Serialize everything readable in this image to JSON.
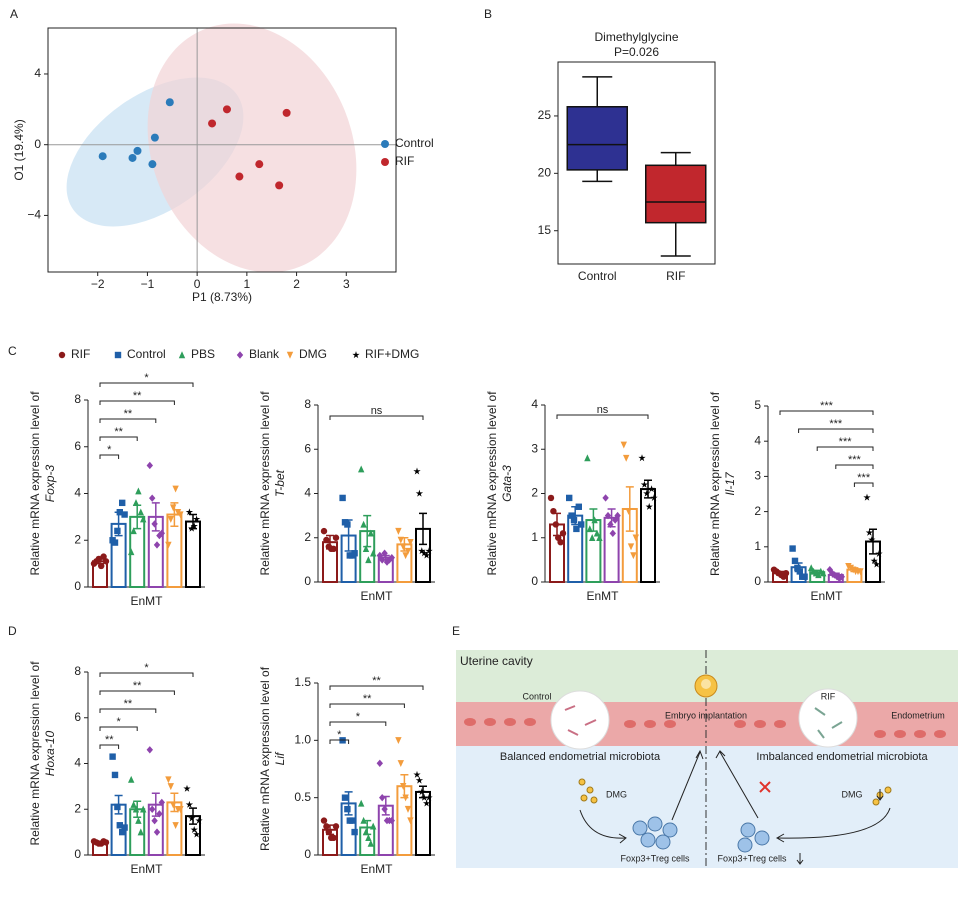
{
  "panels": [
    "A",
    "B",
    "C",
    "D",
    "E"
  ],
  "groups": {
    "names": [
      "RIF",
      "Control",
      "PBS",
      "Blank",
      "DMG",
      "RIF+DMG"
    ],
    "colors": [
      "#8b1a1a",
      "#1f5fa8",
      "#2e9e5b",
      "#8e44ad",
      "#f39c3c",
      "#000000"
    ],
    "markers": [
      "circle",
      "square",
      "triangle",
      "diamond",
      "triangle-down",
      "star"
    ]
  },
  "chart_data": [
    {
      "type": "scatter",
      "xlabel": "P1 (8.73%)",
      "ylabel": "O1 (19.4%)",
      "xlim": [
        -3,
        4
      ],
      "ylim": [
        -7.2,
        6.6
      ],
      "xticks": [
        {
          "value": -2,
          "label": "−2"
        },
        {
          "value": -1,
          "label": "−1"
        },
        0,
        1,
        2,
        3
      ],
      "yticks": [
        {
          "value": -4,
          "label": "−4"
        },
        0,
        4
      ],
      "series": [
        {
          "name": "Control",
          "color": "#2b7bba",
          "x": [
            -0.55,
            -0.85,
            -1.2,
            -1.3,
            -0.9,
            -1.9
          ],
          "y": [
            2.4,
            0.4,
            -0.35,
            -0.75,
            -1.1,
            -0.65
          ]
        },
        {
          "name": "RIF",
          "color": "#c0272d",
          "x": [
            0.6,
            0.3,
            1.8,
            1.25,
            0.85,
            1.65
          ],
          "y": [
            2.0,
            1.2,
            1.8,
            -1.1,
            -1.8,
            -2.3
          ]
        }
      ]
    },
    {
      "type": "box",
      "title": "Dimethylglycine",
      "subtitle": "P=0.026",
      "categories": [
        "Control",
        "RIF"
      ],
      "colors": [
        "#2e3192",
        "#c1272d"
      ],
      "min": [
        19.3,
        12.8
      ],
      "q1": [
        20.3,
        15.7
      ],
      "median": [
        22.5,
        17.5
      ],
      "q3": [
        25.8,
        20.7
      ],
      "max": [
        28.4,
        21.8
      ],
      "ylim": [
        12.1,
        29.7
      ],
      "yticks": [
        15,
        20,
        25
      ]
    },
    {
      "type": "bar",
      "xlabel": "EnMT",
      "ylabel": "Relative mRNA expression level of",
      "gene": "Foxp-3",
      "ylim": [
        0,
        8
      ],
      "yticks": [
        0,
        2,
        4,
        6,
        8
      ],
      "values": [
        1.1,
        2.7,
        3.0,
        3.0,
        3.1,
        2.8
      ],
      "errors": [
        0.1,
        0.5,
        0.5,
        0.6,
        0.5,
        0.3
      ],
      "points": [
        [
          1.0,
          1.1,
          1.2,
          0.9,
          1.3,
          1.1
        ],
        [
          2.0,
          1.9,
          2.4,
          3.2,
          3.6,
          3.1
        ],
        [
          1.5,
          2.4,
          3.6,
          4.1,
          3.2,
          2.9
        ],
        [
          5.2,
          3.8,
          2.7,
          1.8,
          2.2,
          2.3
        ],
        [
          1.8,
          2.9,
          3.4,
          4.2,
          3.2,
          3.1
        ],
        [
          3.2,
          2.5,
          2.6,
          2.9
        ]
      ],
      "comparisons": [
        {
          "groups": [
            "RIF",
            "Control"
          ],
          "label": "*"
        },
        {
          "groups": [
            "RIF",
            "PBS"
          ],
          "label": "**"
        },
        {
          "groups": [
            "RIF",
            "Blank"
          ],
          "label": "**"
        },
        {
          "groups": [
            "RIF",
            "DMG"
          ],
          "label": "**"
        },
        {
          "groups": [
            "RIF",
            "RIF+DMG"
          ],
          "label": "*"
        }
      ]
    },
    {
      "type": "bar",
      "xlabel": "EnMT",
      "ylabel": "Relative mRNA expression level of",
      "gene": "T-bet",
      "ylim": [
        0,
        8
      ],
      "yticks": [
        0,
        2,
        4,
        6,
        8
      ],
      "values": [
        1.8,
        2.1,
        2.3,
        1.1,
        1.7,
        2.4
      ],
      "errors": [
        0.3,
        0.7,
        0.7,
        0.1,
        0.3,
        0.7
      ],
      "points": [
        [
          2.3,
          1.9,
          1.6,
          1.5,
          1.5,
          2.0
        ],
        [
          3.8,
          2.7,
          2.6,
          1.2,
          1.2,
          1.3
        ],
        [
          5.1,
          2.6,
          1.5,
          1.0,
          2.2,
          1.3
        ],
        [
          1.2,
          1.0,
          1.3,
          0.9,
          1.0,
          1.1
        ],
        [
          2.3,
          1.9,
          1.6,
          1.2,
          1.4,
          1.8
        ],
        [
          5.0,
          4.0,
          1.4,
          1.3,
          1.2,
          1.4
        ]
      ],
      "comparisons": [
        {
          "groups": [
            "RIF",
            "RIF+DMG"
          ],
          "label": "ns"
        }
      ]
    },
    {
      "type": "bar",
      "xlabel": "EnMT",
      "ylabel": "Relative mRNA expression level of",
      "gene": "Gata-3",
      "ylim": [
        0,
        4
      ],
      "yticks": [
        0,
        1,
        2,
        3,
        4
      ],
      "values": [
        1.3,
        1.5,
        1.4,
        1.45,
        1.65,
        2.1
      ],
      "errors": [
        0.25,
        0.2,
        0.25,
        0.2,
        0.5,
        0.2
      ],
      "points": [
        [
          1.9,
          1.6,
          1.3,
          1.0,
          0.9,
          1.1
        ],
        [
          1.9,
          1.5,
          1.4,
          1.2,
          1.7,
          1.3
        ],
        [
          2.8,
          1.2,
          1.0,
          1.4,
          1.1,
          1.0
        ],
        [
          1.9,
          1.5,
          1.3,
          1.1,
          1.4,
          1.5
        ],
        [
          3.1,
          2.8,
          1.6,
          0.8,
          0.6,
          1.0
        ],
        [
          2.8,
          2.2,
          2.0,
          1.7,
          2.1,
          1.9
        ]
      ],
      "comparisons": [
        {
          "groups": [
            "RIF",
            "RIF+DMG"
          ],
          "label": "ns"
        }
      ]
    },
    {
      "type": "bar",
      "xlabel": "EnMT",
      "ylabel": "Relative mRNA expression level of",
      "gene": "Il-17",
      "ylim": [
        0,
        5
      ],
      "yticks": [
        0,
        1,
        2,
        3,
        4,
        5
      ],
      "values": [
        0.25,
        0.42,
        0.28,
        0.2,
        0.35,
        1.15
      ],
      "errors": [
        0.05,
        0.12,
        0.05,
        0.05,
        0.05,
        0.35
      ],
      "points": [
        [
          0.35,
          0.3,
          0.25,
          0.2,
          0.15,
          0.25
        ],
        [
          0.95,
          0.6,
          0.4,
          0.3,
          0.15,
          0.15
        ],
        [
          0.4,
          0.3,
          0.25,
          0.2,
          0.3,
          0.25
        ],
        [
          0.35,
          0.25,
          0.2,
          0.15,
          0.1,
          0.15
        ],
        [
          0.45,
          0.4,
          0.35,
          0.3,
          0.3,
          0.3
        ],
        [
          2.4,
          1.4,
          1.2,
          0.6,
          0.5,
          0.8
        ]
      ],
      "comparisons": [
        {
          "groups": [
            "DMG",
            "RIF+DMG"
          ],
          "label": "***"
        },
        {
          "groups": [
            "Blank",
            "RIF+DMG"
          ],
          "label": "***"
        },
        {
          "groups": [
            "PBS",
            "RIF+DMG"
          ],
          "label": "***"
        },
        {
          "groups": [
            "Control",
            "RIF+DMG"
          ],
          "label": "***"
        },
        {
          "groups": [
            "RIF",
            "RIF+DMG"
          ],
          "label": "***"
        }
      ]
    },
    {
      "type": "bar",
      "xlabel": "EnMT",
      "ylabel": "Relative mRNA expression level of",
      "gene": "Hoxa-10",
      "ylim": [
        0,
        8
      ],
      "yticks": [
        0,
        2,
        4,
        6,
        8
      ],
      "values": [
        0.55,
        2.2,
        2.0,
        2.2,
        2.3,
        1.7
      ],
      "errors": [
        0.05,
        0.4,
        0.35,
        0.5,
        0.4,
        0.35
      ],
      "points": [
        [
          0.6,
          0.55,
          0.5,
          0.5,
          0.6,
          0.55
        ],
        [
          4.3,
          3.5,
          2.1,
          1.3,
          1.0,
          1.2
        ],
        [
          3.3,
          2.2,
          2.0,
          1.5,
          1.0,
          2.0
        ],
        [
          4.6,
          2.0,
          1.5,
          1.0,
          1.8,
          2.3
        ],
        [
          3.3,
          3.0,
          2.2,
          1.3,
          2.0,
          2.0
        ],
        [
          2.9,
          2.2,
          1.6,
          1.1,
          0.9,
          1.5
        ]
      ],
      "comparisons": [
        {
          "groups": [
            "RIF",
            "Control"
          ],
          "label": "**"
        },
        {
          "groups": [
            "RIF",
            "PBS"
          ],
          "label": "*"
        },
        {
          "groups": [
            "RIF",
            "Blank"
          ],
          "label": "**"
        },
        {
          "groups": [
            "RIF",
            "DMG"
          ],
          "label": "**"
        },
        {
          "groups": [
            "RIF",
            "RIF+DMG"
          ],
          "label": "*"
        }
      ]
    },
    {
      "type": "bar",
      "xlabel": "EnMT",
      "ylabel": "Relative mRNA expression level of",
      "gene": "Lif",
      "ylim": [
        0,
        1.5
      ],
      "yticks": [
        0,
        0.5,
        {
          "value": 1,
          "label": "1.0"
        },
        1.5
      ],
      "values": [
        0.22,
        0.45,
        0.24,
        0.43,
        0.6,
        0.55
      ],
      "errors": [
        0.04,
        0.1,
        0.06,
        0.08,
        0.1,
        0.05
      ],
      "points": [
        [
          0.3,
          0.25,
          0.2,
          0.15,
          0.15,
          0.25
        ],
        [
          1.0,
          0.5,
          0.4,
          0.3,
          0.3,
          0.2
        ],
        [
          0.45,
          0.3,
          0.2,
          0.15,
          0.1,
          0.25
        ],
        [
          0.8,
          0.5,
          0.4,
          0.3,
          0.3,
          0.3
        ],
        [
          1.0,
          0.8,
          0.6,
          0.5,
          0.4,
          0.3
        ],
        [
          0.7,
          0.65,
          0.55,
          0.5,
          0.45,
          0.5
        ]
      ],
      "comparisons": [
        {
          "groups": [
            "RIF",
            "Control"
          ],
          "label": "*"
        },
        {
          "groups": [
            "RIF",
            "Blank"
          ],
          "label": "*"
        },
        {
          "groups": [
            "RIF",
            "DMG"
          ],
          "label": "**"
        },
        {
          "groups": [
            "RIF",
            "RIF+DMG"
          ],
          "label": "**"
        }
      ]
    }
  ],
  "diagram": {
    "cavity": "Uterine cavity",
    "control": "Control",
    "rif": "RIF",
    "endometrium": "Endometrium",
    "implantation": "Embryo implantation",
    "balanced": "Balanced endometrial microbiota",
    "imbalanced": "Imbalanced endometrial microbiota",
    "dmg_left": "DMG",
    "dmg_right": "DMG",
    "treg_left": "Foxp3+Treg cells",
    "treg_right": "Foxp3+Treg cells"
  }
}
